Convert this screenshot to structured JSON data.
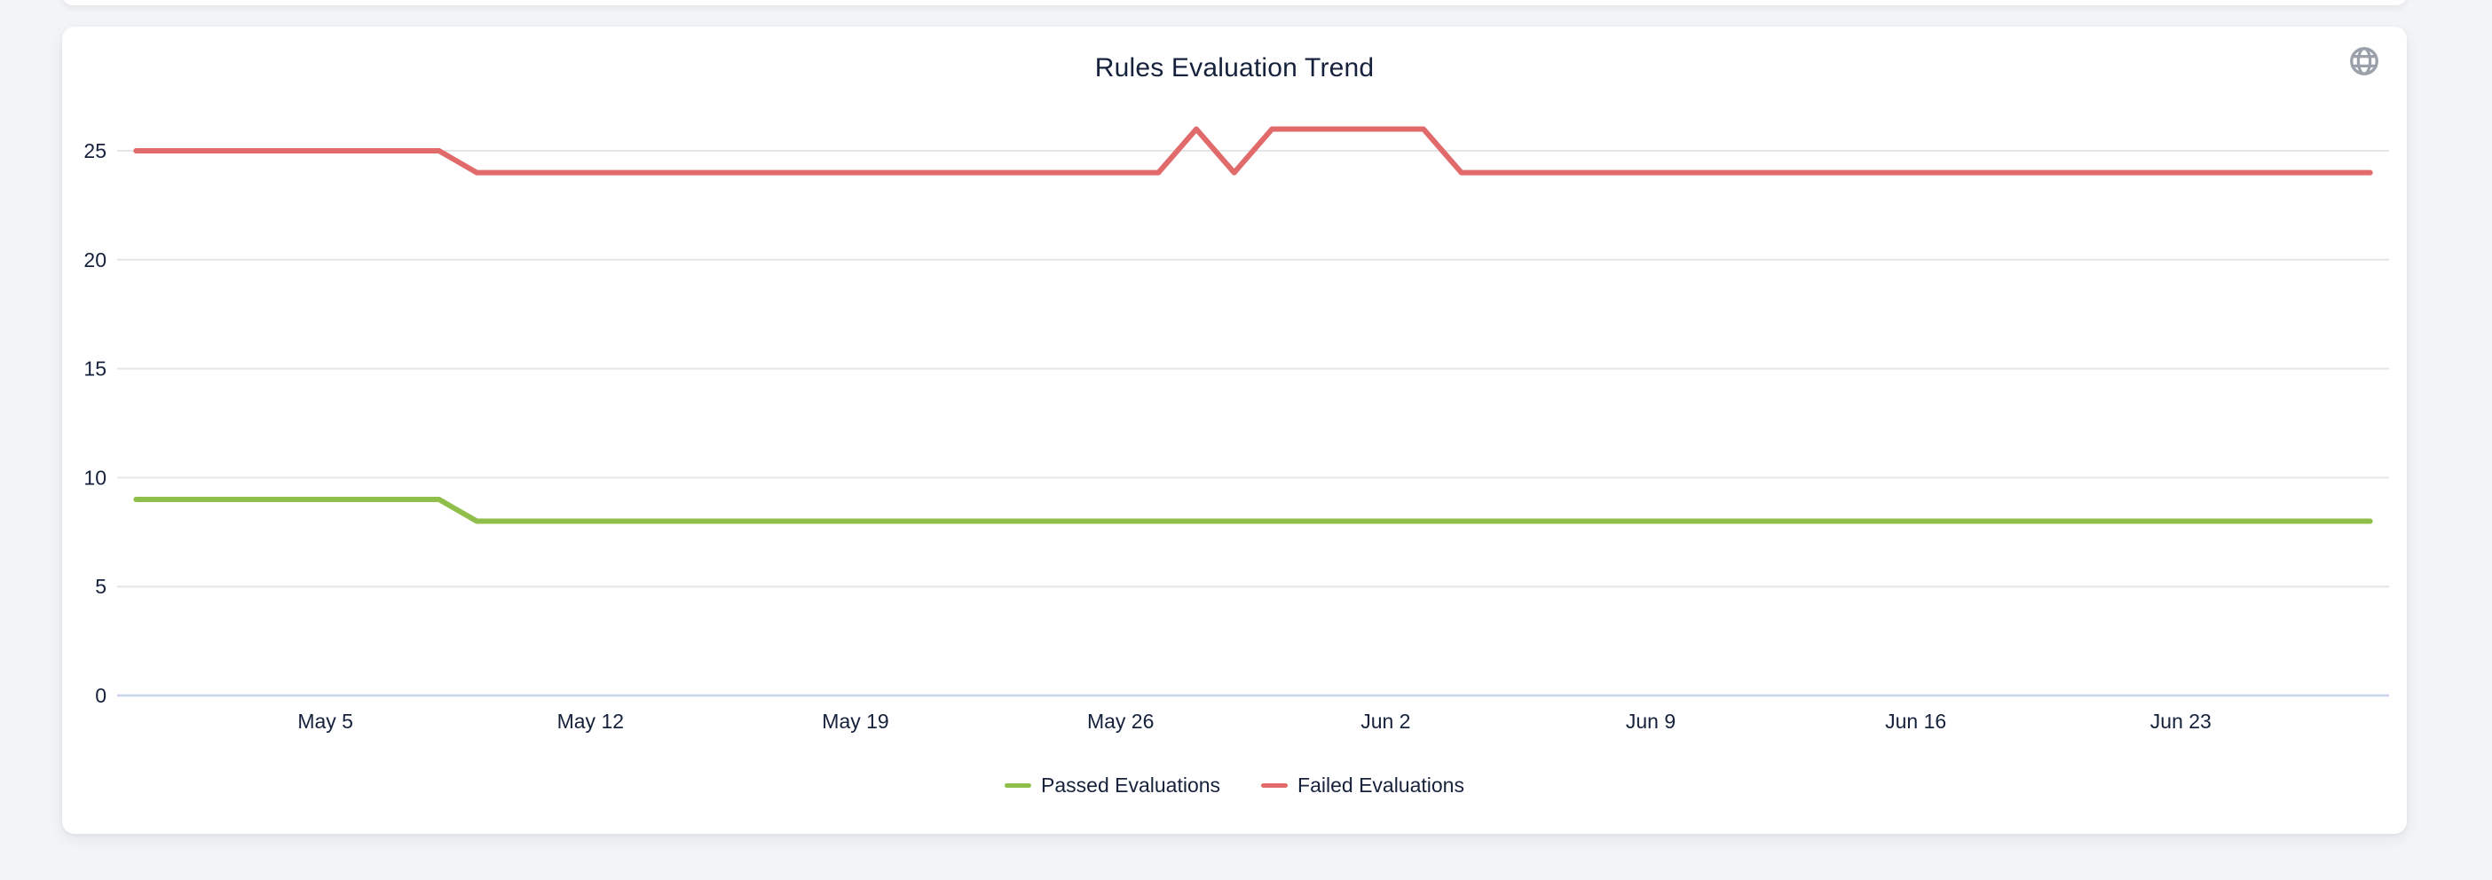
{
  "page": {
    "background_color": "#F2F4F7"
  },
  "card": {
    "title": "Rules Evaluation Trend",
    "corner_icon": "globe"
  },
  "chart_data": {
    "type": "line",
    "title": "Rules Evaluation Trend",
    "xlabel": "",
    "ylabel": "",
    "grid": true,
    "legend_position": "bottom",
    "colors": {
      "grid_line": "#E6E6E6",
      "axis_line": "#CCD6EB",
      "text": "#16213C",
      "passed": "#8FBE4B",
      "failed": "#E16A6A"
    },
    "ylim": [
      0,
      27.24
    ],
    "xlim": [
      -0.5,
      59.5
    ],
    "y_ticks": [
      0,
      5,
      10,
      15,
      20,
      25
    ],
    "x_ticks": [
      {
        "day": 5,
        "label": "May 5"
      },
      {
        "day": 12,
        "label": "May 12"
      },
      {
        "day": 19,
        "label": "May 19"
      },
      {
        "day": 26,
        "label": "May 26"
      },
      {
        "day": 33,
        "label": "Jun 2"
      },
      {
        "day": 40,
        "label": "Jun 9"
      },
      {
        "day": 47,
        "label": "Jun 16"
      },
      {
        "day": 54,
        "label": "Jun 23"
      }
    ],
    "series": [
      {
        "name": "Passed Evaluations",
        "color": "#8FBE4B",
        "values": [
          9,
          9,
          9,
          9,
          9,
          9,
          9,
          9,
          9,
          8,
          8,
          8,
          8,
          8,
          8,
          8,
          8,
          8,
          8,
          8,
          8,
          8,
          8,
          8,
          8,
          8,
          8,
          8,
          8,
          8,
          8,
          8,
          8,
          8,
          8,
          8,
          8,
          8,
          8,
          8,
          8,
          8,
          8,
          8,
          8,
          8,
          8,
          8,
          8,
          8,
          8,
          8,
          8,
          8,
          8,
          8,
          8,
          8,
          8,
          8
        ]
      },
      {
        "name": "Failed Evaluations",
        "color": "#E16A6A",
        "values": [
          25,
          25,
          25,
          25,
          25,
          25,
          25,
          25,
          25,
          24,
          24,
          24,
          24,
          24,
          24,
          24,
          24,
          24,
          24,
          24,
          24,
          24,
          24,
          24,
          24,
          24,
          24,
          24,
          26,
          24,
          26,
          26,
          26,
          26,
          26,
          24,
          24,
          24,
          24,
          24,
          24,
          24,
          24,
          24,
          24,
          24,
          24,
          24,
          24,
          24,
          24,
          24,
          24,
          24,
          24,
          24,
          24,
          24,
          24,
          24
        ]
      }
    ]
  }
}
